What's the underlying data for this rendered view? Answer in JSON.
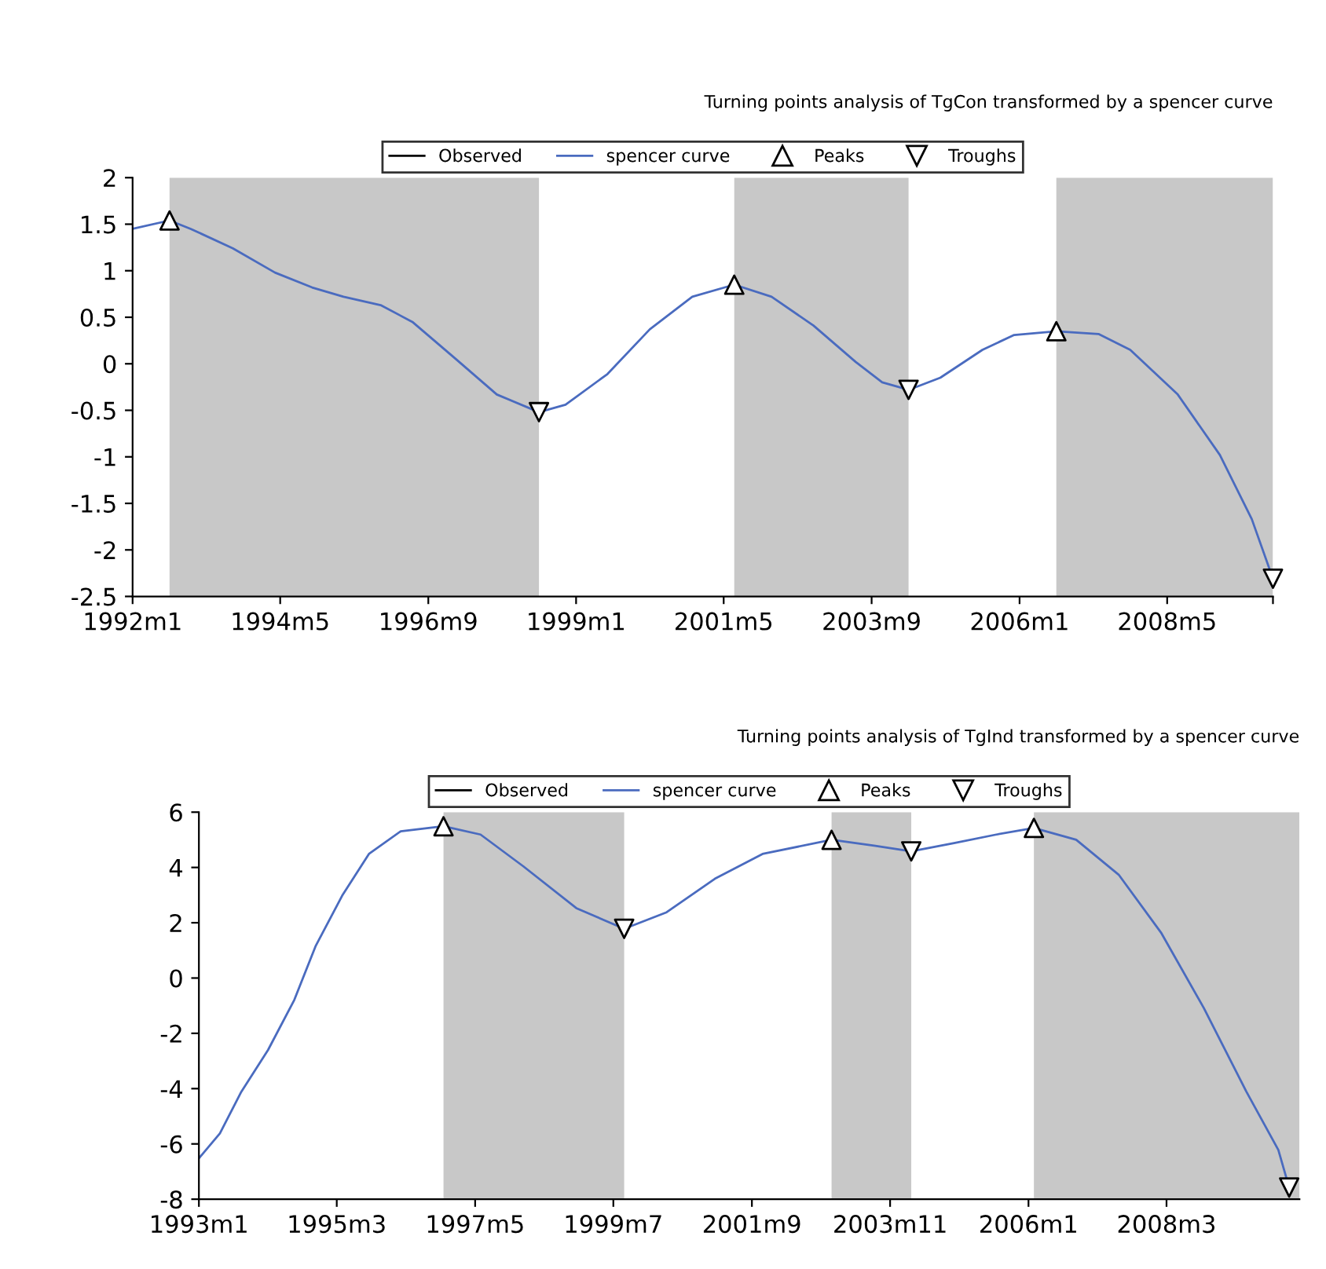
{
  "chart_data": [
    {
      "type": "line",
      "title": "Turning points analysis of TgCon transformed by a spencer curve",
      "legend": "top",
      "grid": false,
      "xlim": [
        "1992-01",
        "2010-01"
      ],
      "xticks": [
        {
          "value": "1992-01",
          "label": "1992m1"
        },
        {
          "value": "1994-05",
          "label": "1994m5"
        },
        {
          "value": "1996-09",
          "label": "1996m9"
        },
        {
          "value": "1999-01",
          "label": "1999m1"
        },
        {
          "value": "2001-05",
          "label": "2001m5"
        },
        {
          "value": "2003-09",
          "label": "2003m9"
        },
        {
          "value": "2006-01",
          "label": "2006m1"
        },
        {
          "value": "2008-05",
          "label": "2008m5"
        },
        {
          "value": "2010-01",
          "label": null
        }
      ],
      "ylim": [
        -2.5,
        2
      ],
      "yticks": [
        -2.5,
        -2,
        -1.5,
        -1,
        -0.5,
        0,
        0.5,
        1,
        1.5,
        2
      ],
      "bands": [
        {
          "axis": "x",
          "from": "1992-08",
          "to": "1998-06",
          "color": "#c8c8c8"
        },
        {
          "axis": "x",
          "from": "2001-07",
          "to": "2004-04",
          "color": "#c8c8c8"
        },
        {
          "axis": "x",
          "from": "2006-08",
          "to": "2010-01",
          "color": "#c8c8c8"
        }
      ],
      "series": [
        {
          "name": "Observed",
          "color": "#000000"
        },
        {
          "name": "spencer curve",
          "color": "#4a6bbf",
          "x": [
            "1992-01",
            "1992-08",
            "1992-12",
            "1993-08",
            "1994-04",
            "1994-11",
            "1995-05",
            "1995-12",
            "1996-06",
            "1997-02",
            "1997-10",
            "1998-06",
            "1998-11",
            "1999-07",
            "2000-03",
            "2000-11",
            "2001-07",
            "2002-02",
            "2002-10",
            "2003-06",
            "2003-11",
            "2004-04",
            "2004-10",
            "2005-06",
            "2005-12",
            "2006-08",
            "2007-04",
            "2007-10",
            "2008-07",
            "2009-03",
            "2009-09",
            "2010-01"
          ],
          "values": [
            1.45,
            1.54,
            1.45,
            1.24,
            0.98,
            0.82,
            0.72,
            0.63,
            0.45,
            0.06,
            -0.33,
            -0.52,
            -0.44,
            -0.11,
            0.37,
            0.72,
            0.85,
            0.72,
            0.41,
            0.02,
            -0.2,
            -0.28,
            -0.15,
            0.15,
            0.31,
            0.35,
            0.32,
            0.15,
            -0.33,
            -0.98,
            -1.67,
            -2.31
          ]
        },
        {
          "name": "Peaks",
          "type": "scatter",
          "marker": "triangle",
          "color": "#000000",
          "x": [
            "1992-08",
            "2001-07",
            "2006-08"
          ],
          "values": [
            1.54,
            0.85,
            0.35
          ]
        },
        {
          "name": "Troughs",
          "type": "scatter",
          "marker": "triangle_down",
          "color": "#000000",
          "x": [
            "1998-06",
            "2004-04",
            "2010-01"
          ],
          "values": [
            -0.52,
            -0.28,
            -2.31
          ]
        }
      ]
    },
    {
      "type": "line",
      "title": "Turning points analysis of TgInd transformed by a spencer curve",
      "legend": "top",
      "grid": false,
      "xlim": [
        "1993-01",
        "2010-04"
      ],
      "xticks": [
        {
          "value": "1993-01",
          "label": "1993m1"
        },
        {
          "value": "1995-03",
          "label": "1995m3"
        },
        {
          "value": "1997-05",
          "label": "1997m5"
        },
        {
          "value": "1999-07",
          "label": "1999m7"
        },
        {
          "value": "2001-09",
          "label": "2001m9"
        },
        {
          "value": "2003-11",
          "label": "2003m11"
        },
        {
          "value": "2006-01",
          "label": "2006m1"
        },
        {
          "value": "2008-03",
          "label": "2008m3"
        }
      ],
      "ylim": [
        -8,
        6
      ],
      "yticks": [
        -8,
        -6,
        -4,
        -2,
        0,
        2,
        4,
        6
      ],
      "bands": [
        {
          "axis": "x",
          "from": "1996-11",
          "to": "1999-09",
          "color": "#c8c8c8"
        },
        {
          "axis": "x",
          "from": "2002-12",
          "to": "2004-03",
          "color": "#c8c8c8"
        },
        {
          "axis": "x",
          "from": "2006-02",
          "to": "2010-04",
          "color": "#c8c8c8"
        }
      ],
      "series": [
        {
          "name": "Observed",
          "color": "#000000"
        },
        {
          "name": "spencer curve",
          "color": "#4a6bbf",
          "x": [
            "1993-01",
            "1993-05",
            "1993-09",
            "1994-02",
            "1994-07",
            "1994-11",
            "1995-04",
            "1995-09",
            "1996-03",
            "1996-11",
            "1997-06",
            "1998-02",
            "1998-12",
            "1999-09",
            "2000-05",
            "2001-02",
            "2001-11",
            "2002-12",
            "2003-08",
            "2004-03",
            "2004-11",
            "2005-07",
            "2006-02",
            "2006-10",
            "2007-06",
            "2008-02",
            "2008-10",
            "2009-06",
            "2009-12",
            "2010-02"
          ],
          "values": [
            -6.52,
            -5.62,
            -4.11,
            -2.6,
            -0.79,
            1.17,
            2.98,
            4.49,
            5.31,
            5.49,
            5.19,
            4.04,
            2.53,
            1.78,
            2.38,
            3.59,
            4.49,
            5.0,
            4.79,
            4.58,
            4.88,
            5.19,
            5.43,
            5.0,
            3.74,
            1.62,
            -1.09,
            -4.11,
            -6.22,
            -7.58
          ]
        },
        {
          "name": "Peaks",
          "type": "scatter",
          "marker": "triangle",
          "color": "#000000",
          "x": [
            "1996-11",
            "2002-12",
            "2006-02"
          ],
          "values": [
            5.49,
            5.0,
            5.43
          ]
        },
        {
          "name": "Troughs",
          "type": "scatter",
          "marker": "triangle_down",
          "color": "#000000",
          "x": [
            "1999-09",
            "2004-03",
            "2010-02"
          ],
          "values": [
            1.78,
            4.58,
            -7.58
          ]
        }
      ]
    }
  ]
}
